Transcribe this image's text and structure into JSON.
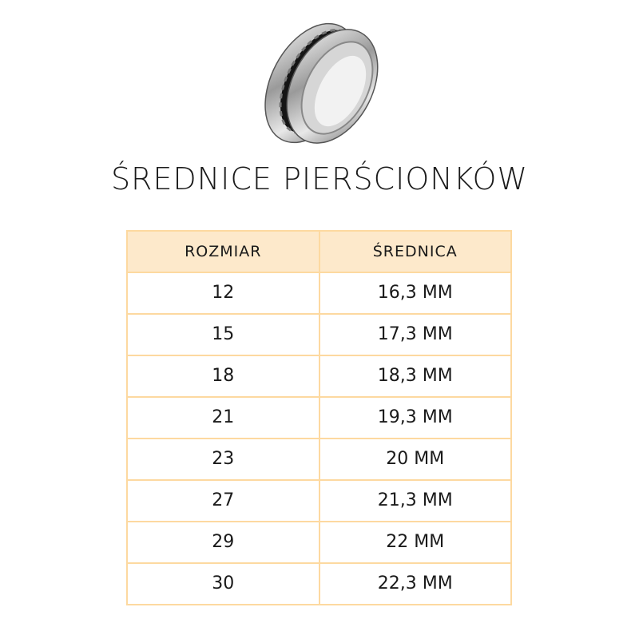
{
  "title": "ŚREDNICE PIERŚCIONKÓW",
  "image": {
    "icon": "spinner-chain-ring-icon",
    "colors": {
      "metal": "#c8c8c8",
      "chain": "#111111"
    }
  },
  "table": {
    "headers": [
      "ROZMIAR",
      "ŚREDNICA"
    ],
    "rows": [
      [
        "12",
        "16,3 MM"
      ],
      [
        "15",
        "17,3 MM"
      ],
      [
        "18",
        "18,3 MM"
      ],
      [
        "21",
        "19,3 MM"
      ],
      [
        "23",
        "20 MM"
      ],
      [
        "27",
        "21,3 MM"
      ],
      [
        "29",
        "22 MM"
      ],
      [
        "30",
        "22,3 MM"
      ]
    ],
    "colors": {
      "header_bg": "#fde9cb",
      "border": "#fdd9a0"
    }
  }
}
